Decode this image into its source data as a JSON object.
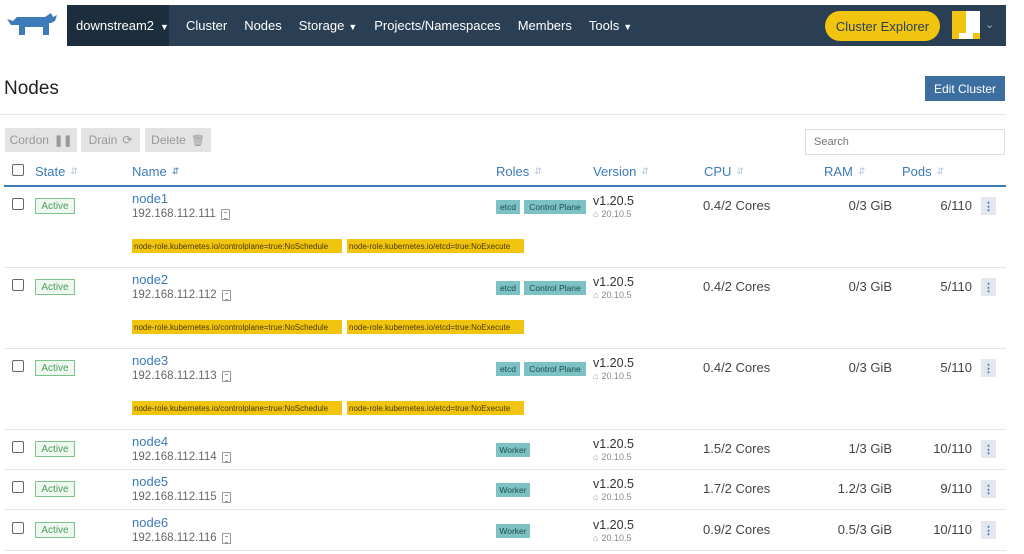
{
  "nav": {
    "cluster": "downstream2",
    "items": [
      "Cluster",
      "Nodes",
      "Storage",
      "Projects/Namespaces",
      "Members",
      "Tools"
    ],
    "explorer": "Cluster Explorer"
  },
  "header": {
    "title": "Nodes",
    "edit_button": "Edit Cluster"
  },
  "actions": {
    "cordon": "Cordon",
    "drain": "Drain",
    "delete": "Delete"
  },
  "search": {
    "placeholder": "Search"
  },
  "columns": {
    "state": "State",
    "name": "Name",
    "roles": "Roles",
    "version": "Version",
    "cpu": "CPU",
    "ram": "RAM",
    "pods": "Pods"
  },
  "rows": [
    {
      "state": "Active",
      "name": "node1",
      "ip": "192.168.112.111",
      "roles": [
        "etcd",
        "Control Plane"
      ],
      "version": "v1.20.5",
      "docker": "20.10.5",
      "cpu": "0.4/2 Cores",
      "ram": "0/3 GiB",
      "pods": "6/110",
      "taints": [
        "node-role.kubernetes.io/controlplane=true:NoSchedule",
        "node-role.kubernetes.io/etcd=true:NoExecute"
      ]
    },
    {
      "state": "Active",
      "name": "node2",
      "ip": "192.168.112.112",
      "roles": [
        "etcd",
        "Control Plane"
      ],
      "version": "v1.20.5",
      "docker": "20.10.5",
      "cpu": "0.4/2 Cores",
      "ram": "0/3 GiB",
      "pods": "5/110",
      "taints": [
        "node-role.kubernetes.io/controlplane=true:NoSchedule",
        "node-role.kubernetes.io/etcd=true:NoExecute"
      ]
    },
    {
      "state": "Active",
      "name": "node3",
      "ip": "192.168.112.113",
      "roles": [
        "etcd",
        "Control Plane"
      ],
      "version": "v1.20.5",
      "docker": "20.10.5",
      "cpu": "0.4/2 Cores",
      "ram": "0/3 GiB",
      "pods": "5/110",
      "taints": [
        "node-role.kubernetes.io/controlplane=true:NoSchedule",
        "node-role.kubernetes.io/etcd=true:NoExecute"
      ]
    },
    {
      "state": "Active",
      "name": "node4",
      "ip": "192.168.112.114",
      "roles": [
        "Worker"
      ],
      "version": "v1.20.5",
      "docker": "20.10.5",
      "cpu": "1.5/2 Cores",
      "ram": "1/3 GiB",
      "pods": "10/110",
      "taints": []
    },
    {
      "state": "Active",
      "name": "node5",
      "ip": "192.168.112.115",
      "roles": [
        "Worker"
      ],
      "version": "v1.20.5",
      "docker": "20.10.5",
      "cpu": "1.7/2 Cores",
      "ram": "1.2/3 GiB",
      "pods": "9/110",
      "taints": []
    },
    {
      "state": "Active",
      "name": "node6",
      "ip": "192.168.112.116",
      "roles": [
        "Worker"
      ],
      "version": "v1.20.5",
      "docker": "20.10.5",
      "cpu": "0.9/2 Cores",
      "ram": "0.5/3 GiB",
      "pods": "10/110",
      "taints": []
    }
  ]
}
